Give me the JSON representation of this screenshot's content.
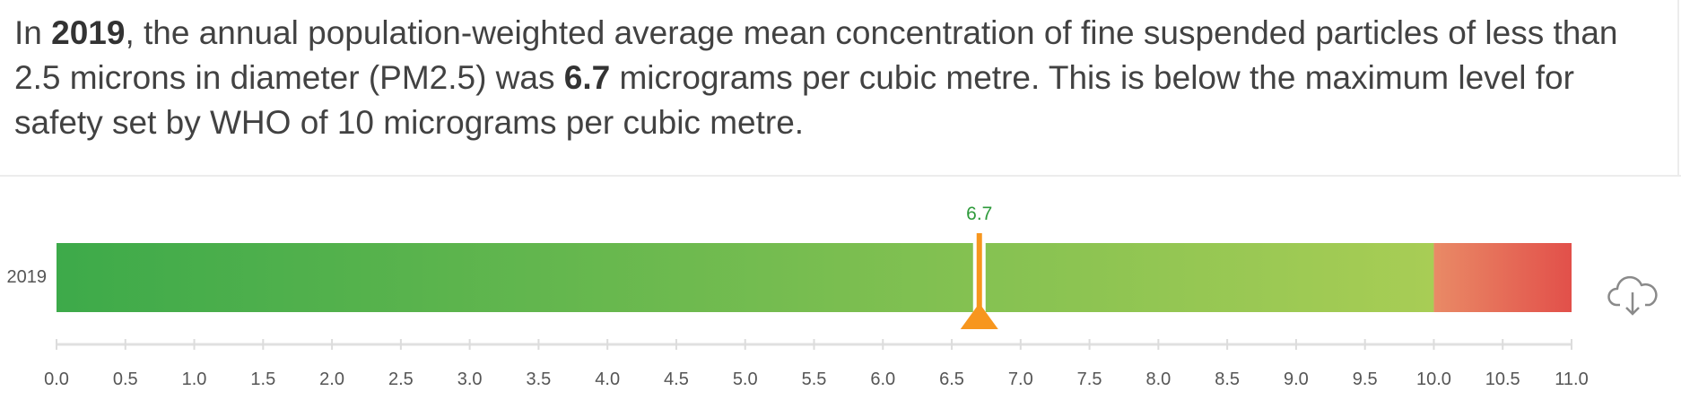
{
  "summary": {
    "t1": "In ",
    "year": "2019",
    "t2": ", the annual population-weighted average mean concentration of fine suspended particles of less than 2.5 microns in diameter (PM2.5) was ",
    "value": "6.7",
    "t3": " micrograms per cubic metre. This is below the maximum level for safety set by WHO of 10 micrograms per cubic metre."
  },
  "chart_data": {
    "type": "bar",
    "categories": [
      "2019"
    ],
    "values": [
      6.7
    ],
    "value_label": "6.7",
    "xlim": [
      0,
      11
    ],
    "ticks": [
      "0.0",
      "0.5",
      "1.0",
      "1.5",
      "2.0",
      "2.5",
      "3.0",
      "3.5",
      "4.0",
      "4.5",
      "5.0",
      "5.5",
      "6.0",
      "6.5",
      "7.0",
      "7.5",
      "8.0",
      "8.5",
      "9.0",
      "9.5",
      "10.0",
      "10.5",
      "11.0"
    ],
    "safe_limit": 10,
    "bands": [
      {
        "from": 0,
        "to": 10,
        "color_start": "#3daa4a",
        "color_end": "#a8cd55"
      },
      {
        "from": 10,
        "to": 11,
        "color_start": "#e98a66",
        "color_end": "#e2504a"
      }
    ],
    "marker_color": "#f7961e",
    "label_color": "#2e9a3b"
  },
  "icons": {
    "download": "cloud-download-icon"
  }
}
